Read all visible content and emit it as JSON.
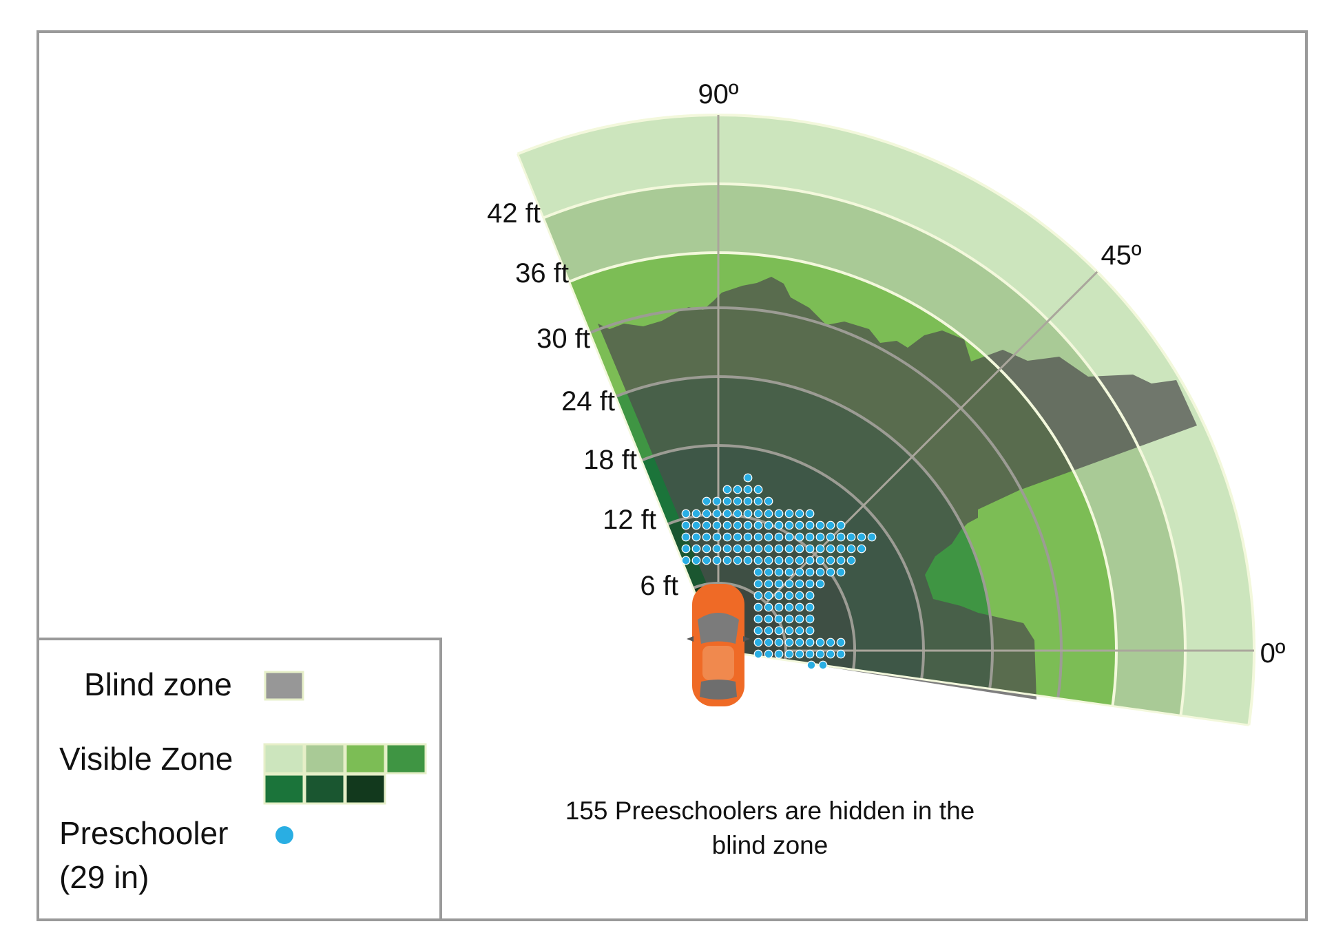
{
  "diagram": {
    "angle_labels": [
      "90º",
      "45º",
      "0º"
    ],
    "distance_labels": [
      "6 ft",
      "12 ft",
      "18 ft",
      "24 ft",
      "30 ft",
      "36 ft",
      "42 ft"
    ],
    "caption_line1": "155 Preeschoolers are hidden in the",
    "caption_line2": "blind zone",
    "preschooler_count": 155
  },
  "legend": {
    "blind_zone_label": "Blind zone",
    "visible_zone_label": "Visible Zone",
    "preschooler_label_line1": "Preschooler",
    "preschooler_label_line2": "(29 in)"
  },
  "colors": {
    "blind_zone": "#979797",
    "visible_zone_shades": [
      "#cce5bd",
      "#a9ca96",
      "#7cbd55",
      "#3f9543",
      "#1b743a",
      "#1a5630",
      "#12391d"
    ],
    "preschooler_dot": "#29aee3",
    "vehicle": "#ef6a26",
    "frame": "#9a9a9a"
  }
}
